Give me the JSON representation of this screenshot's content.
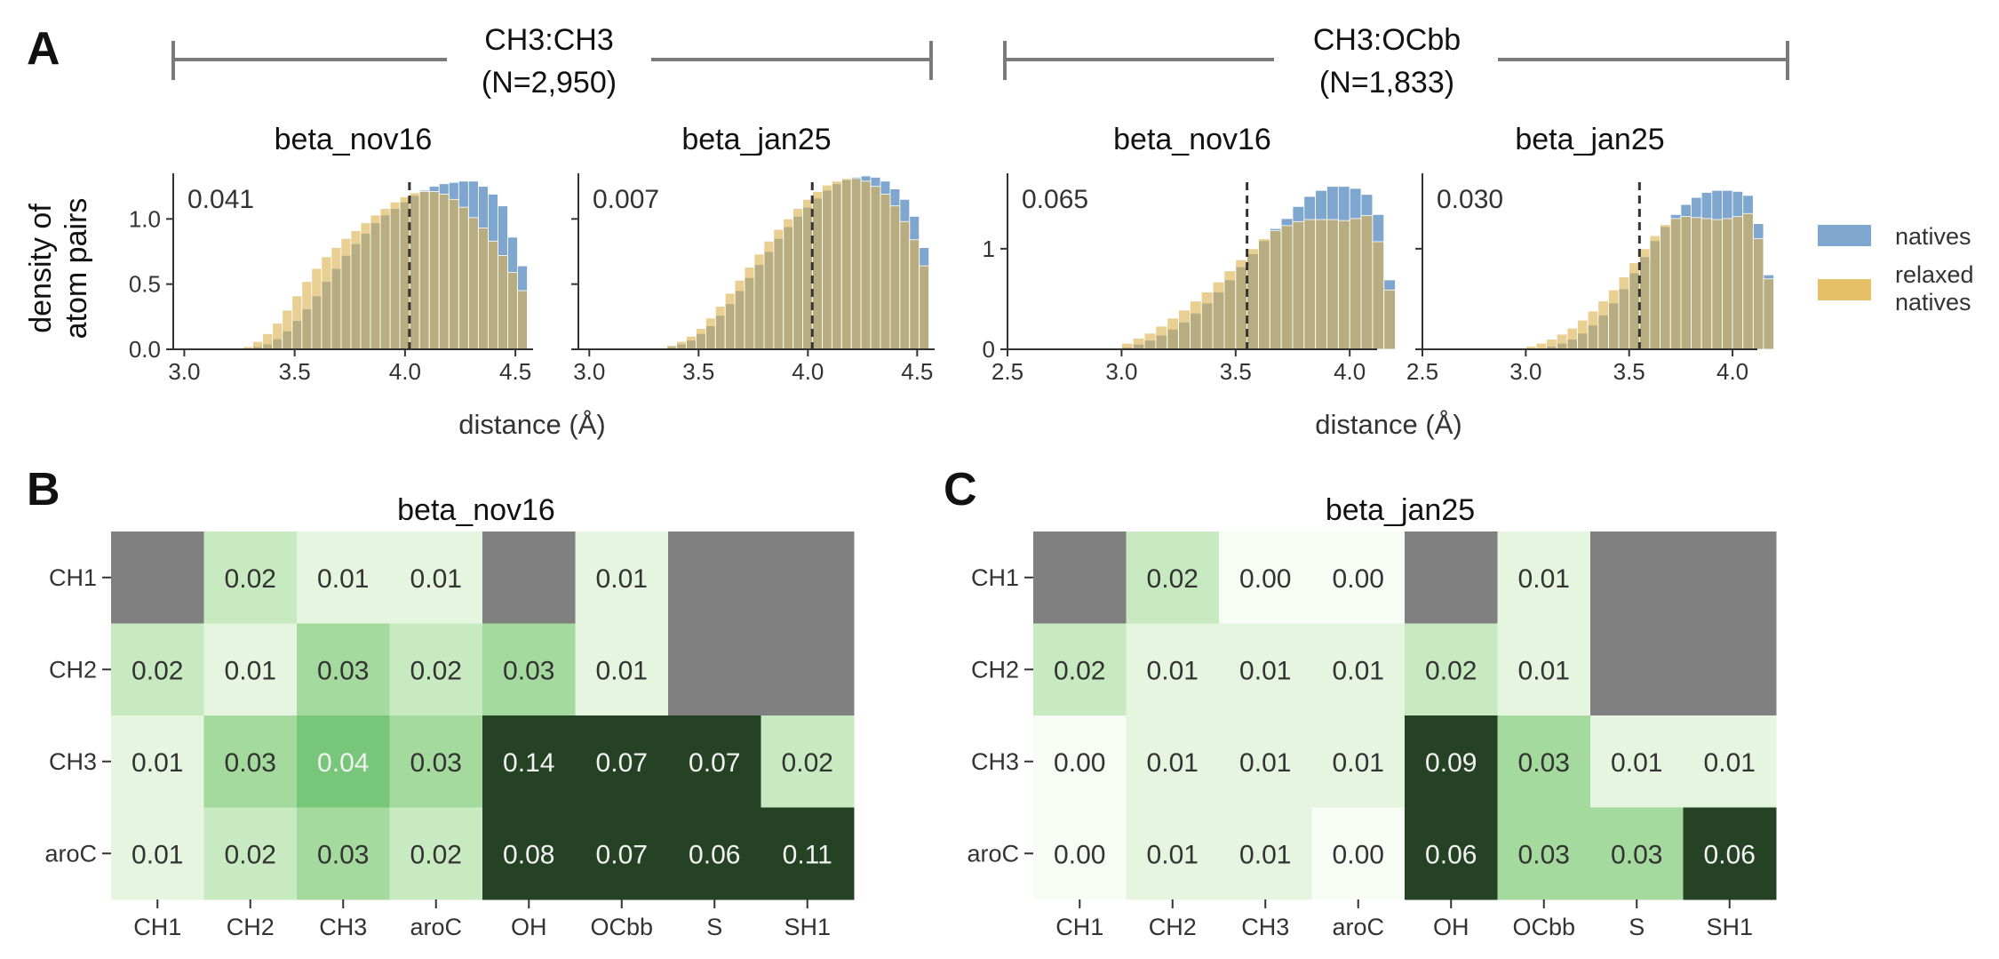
{
  "panel_labels": {
    "a": "A",
    "b": "B",
    "c": "C"
  },
  "panel_a": {
    "groups": [
      {
        "label_line1": "CH3:CH3",
        "label_line2": "(N=2,950)"
      },
      {
        "label_line1": "CH3:OCbb",
        "label_line2": "(N=1,833)"
      }
    ],
    "ylabel_line1": "density of",
    "ylabel_line2": "atom pairs",
    "xlabel": "distance (Å)",
    "legend": [
      {
        "label": "natives",
        "color": "#7ea6cf"
      },
      {
        "label_line1": "relaxed",
        "label_line2": "natives",
        "color": "#e6c069"
      }
    ]
  },
  "panel_b": {
    "title": "beta_nov16"
  },
  "panel_c": {
    "title": "beta_jan25"
  },
  "chart_data": [
    {
      "type": "bar",
      "title": "beta_nov16",
      "annotation": "0.041",
      "xlabel": "distance (Å)",
      "ylabel": "density of atom pairs",
      "xlim": [
        2.95,
        4.58
      ],
      "ylim": [
        0,
        1.35
      ],
      "xticks": [
        3.0,
        3.5,
        4.0,
        4.5
      ],
      "yticks": [
        0.0,
        0.5,
        1.0
      ],
      "ytick_labels": [
        "0.0",
        "0.5",
        "1.0"
      ],
      "dashed_line_x": 4.02,
      "bin_start": 3.0,
      "bin_width": 0.0444,
      "series": [
        {
          "name": "natives",
          "values": [
            0,
            0,
            0,
            0,
            0,
            0,
            0.01,
            0.02,
            0.04,
            0.08,
            0.14,
            0.22,
            0.31,
            0.41,
            0.52,
            0.62,
            0.72,
            0.81,
            0.89,
            0.97,
            1.03,
            1.08,
            1.13,
            1.18,
            1.22,
            1.25,
            1.27,
            1.28,
            1.29,
            1.29,
            1.25,
            1.19,
            1.1,
            0.86,
            0.64
          ]
        },
        {
          "name": "relaxed natives",
          "values": [
            0,
            0,
            0,
            0,
            0,
            0,
            0.02,
            0.06,
            0.12,
            0.2,
            0.3,
            0.41,
            0.52,
            0.62,
            0.71,
            0.78,
            0.85,
            0.91,
            0.97,
            1.03,
            1.08,
            1.13,
            1.17,
            1.2,
            1.21,
            1.21,
            1.19,
            1.15,
            1.09,
            1.01,
            0.93,
            0.83,
            0.72,
            0.59,
            0.45
          ]
        }
      ]
    },
    {
      "type": "bar",
      "title": "beta_jan25",
      "annotation": "0.007",
      "xlabel": "distance (Å)",
      "xlim": [
        2.95,
        4.58
      ],
      "ylim": [
        0,
        1.35
      ],
      "xticks": [
        3.0,
        3.5,
        4.0,
        4.5
      ],
      "yticks": [
        0.0,
        0.5,
        1.0
      ],
      "ytick_labels": [
        "",
        "",
        ""
      ],
      "dashed_line_x": 4.02,
      "bin_start": 3.0,
      "bin_width": 0.0444,
      "series": [
        {
          "name": "natives",
          "values": [
            0,
            0,
            0,
            0,
            0,
            0,
            0,
            0.01,
            0.02,
            0.04,
            0.07,
            0.12,
            0.18,
            0.26,
            0.35,
            0.45,
            0.55,
            0.65,
            0.75,
            0.85,
            0.94,
            1.02,
            1.09,
            1.16,
            1.22,
            1.27,
            1.3,
            1.32,
            1.33,
            1.32,
            1.29,
            1.23,
            1.15,
            1.02,
            0.78
          ]
        },
        {
          "name": "relaxed natives",
          "values": [
            0,
            0,
            0,
            0,
            0,
            0,
            0,
            0.01,
            0.03,
            0.06,
            0.1,
            0.16,
            0.24,
            0.33,
            0.43,
            0.53,
            0.63,
            0.73,
            0.83,
            0.92,
            1.0,
            1.08,
            1.15,
            1.21,
            1.26,
            1.29,
            1.31,
            1.31,
            1.29,
            1.25,
            1.19,
            1.1,
            0.98,
            0.84,
            0.64
          ]
        }
      ]
    },
    {
      "type": "bar",
      "title": "beta_nov16",
      "annotation": "0.065",
      "xlabel": "distance (Å)",
      "xlim": [
        2.5,
        4.12
      ],
      "ylim": [
        0,
        1.75
      ],
      "xticks": [
        2.5,
        3.0,
        3.5,
        4.0
      ],
      "yticks": [
        0,
        1
      ],
      "ytick_labels": [
        "0",
        "1"
      ],
      "dashed_line_x": 3.55,
      "bin_start": 2.6,
      "bin_width": 0.05,
      "series": [
        {
          "name": "natives",
          "values": [
            0,
            0,
            0,
            0,
            0,
            0,
            0,
            0,
            0.02,
            0.05,
            0.09,
            0.14,
            0.2,
            0.27,
            0.36,
            0.46,
            0.57,
            0.69,
            0.82,
            0.95,
            1.08,
            1.2,
            1.3,
            1.42,
            1.52,
            1.58,
            1.62,
            1.62,
            1.6,
            1.54,
            1.34,
            0.69
          ]
        },
        {
          "name": "relaxed natives",
          "values": [
            0,
            0,
            0,
            0,
            0,
            0,
            0,
            0,
            0.06,
            0.11,
            0.16,
            0.23,
            0.31,
            0.39,
            0.48,
            0.57,
            0.67,
            0.78,
            0.89,
            1.0,
            1.1,
            1.18,
            1.23,
            1.27,
            1.29,
            1.29,
            1.29,
            1.28,
            1.3,
            1.33,
            1.07,
            0.59
          ]
        }
      ]
    },
    {
      "type": "bar",
      "title": "beta_jan25",
      "annotation": "0.030",
      "xlabel": "distance (Å)",
      "xlim": [
        2.5,
        4.12
      ],
      "ylim": [
        0,
        1.75
      ],
      "xticks": [
        2.5,
        3.0,
        3.5,
        4.0
      ],
      "yticks": [
        0,
        1
      ],
      "ytick_labels": [
        "",
        ""
      ],
      "dashed_line_x": 3.55,
      "bin_start": 2.6,
      "bin_width": 0.05,
      "series": [
        {
          "name": "natives",
          "values": [
            0,
            0,
            0,
            0,
            0,
            0,
            0,
            0,
            0,
            0.01,
            0.03,
            0.06,
            0.1,
            0.16,
            0.24,
            0.34,
            0.46,
            0.6,
            0.76,
            0.92,
            1.08,
            1.22,
            1.34,
            1.44,
            1.51,
            1.56,
            1.58,
            1.58,
            1.57,
            1.53,
            1.25,
            0.74
          ]
        },
        {
          "name": "relaxed natives",
          "values": [
            0,
            0,
            0,
            0,
            0,
            0,
            0,
            0,
            0.03,
            0.06,
            0.1,
            0.15,
            0.21,
            0.29,
            0.38,
            0.48,
            0.59,
            0.72,
            0.86,
            1.0,
            1.13,
            1.24,
            1.3,
            1.32,
            1.31,
            1.3,
            1.29,
            1.3,
            1.32,
            1.35,
            1.1,
            0.7
          ]
        }
      ]
    },
    {
      "type": "heatmap",
      "title": "beta_nov16",
      "x_labels": [
        "CH1",
        "CH2",
        "CH3",
        "aroC",
        "OH",
        "OCbb",
        "S",
        "SH1"
      ],
      "y_labels": [
        "CH1",
        "CH2",
        "CH3",
        "aroC"
      ],
      "values": [
        [
          null,
          0.02,
          0.01,
          0.01,
          null,
          0.01,
          null,
          null
        ],
        [
          0.02,
          0.01,
          0.03,
          0.02,
          0.03,
          0.01,
          null,
          null
        ],
        [
          0.01,
          0.03,
          0.04,
          0.03,
          0.14,
          0.07,
          0.07,
          0.02
        ],
        [
          0.01,
          0.02,
          0.03,
          0.02,
          0.08,
          0.07,
          0.06,
          0.11
        ]
      ],
      "colormap": "Greens",
      "missing_color": "#808080"
    },
    {
      "type": "heatmap",
      "title": "beta_jan25",
      "x_labels": [
        "CH1",
        "CH2",
        "CH3",
        "aroC",
        "OH",
        "OCbb",
        "S",
        "SH1"
      ],
      "y_labels": [
        "CH1",
        "CH2",
        "CH3",
        "aroC"
      ],
      "values": [
        [
          null,
          0.02,
          0.0,
          0.0,
          null,
          0.01,
          null,
          null
        ],
        [
          0.02,
          0.01,
          0.01,
          0.01,
          0.02,
          0.01,
          null,
          null
        ],
        [
          0.0,
          0.01,
          0.01,
          0.01,
          0.09,
          0.03,
          0.01,
          0.01
        ],
        [
          0.0,
          0.01,
          0.01,
          0.0,
          0.06,
          0.03,
          0.03,
          0.06
        ]
      ],
      "colormap": "Greens",
      "missing_color": "#808080"
    }
  ]
}
